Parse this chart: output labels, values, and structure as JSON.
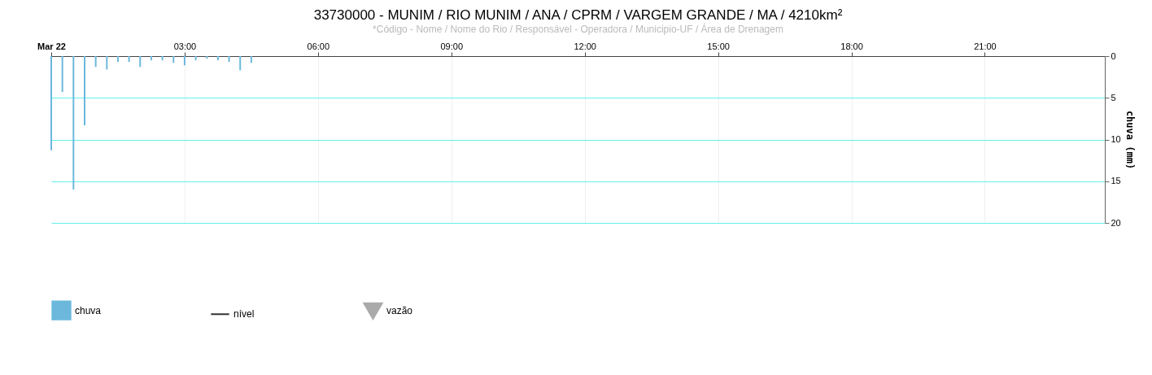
{
  "chart_data": {
    "type": "bar",
    "title": "33730000 - MUNIM / RIO MUNIM / ANA / CPRM / VARGEM GRANDE / MA / 4210km²",
    "subtitle": "*Código - Nome / Nome do Rio / Responsável - Operadora / Municipio-UF / Área de Drenagem",
    "ylabel": "chuva (mm)",
    "x": [
      0,
      0.25,
      0.5,
      0.75,
      1,
      1.25,
      1.5,
      1.75,
      2,
      2.25,
      2.5,
      2.75,
      3,
      3.25,
      3.5,
      3.75,
      4,
      4.25,
      4.5
    ],
    "series": [
      {
        "name": "chuva",
        "color": "#6bb8dc",
        "values": [
          11.3,
          4.3,
          16,
          8.3,
          1.3,
          1.6,
          0.7,
          0.7,
          1.3,
          0.5,
          0.5,
          0.8,
          1.1,
          0.5,
          0.3,
          0.5,
          0.7,
          1.7,
          0.8
        ]
      },
      {
        "name": "nível",
        "type": "line",
        "color": "#333333",
        "marker": "none",
        "values": [
          null,
          null,
          null,
          null,
          null,
          null,
          null,
          null,
          null,
          null,
          null,
          null,
          null,
          null,
          null,
          null,
          null,
          null,
          null
        ]
      },
      {
        "name": "vazão",
        "type": "line",
        "color": "#aaaaaa",
        "marker": "triangle",
        "values": [
          null,
          null,
          null,
          null,
          null,
          null,
          null,
          null,
          null,
          null,
          null,
          null,
          null,
          null,
          null,
          null,
          null,
          null,
          null
        ]
      }
    ],
    "xlim": [
      0,
      23.7
    ],
    "xticks": [
      {
        "value": 0,
        "label": "Mar 22"
      },
      {
        "value": 3,
        "label": "03:00"
      },
      {
        "value": 6,
        "label": "06:00"
      },
      {
        "value": 9,
        "label": "09:00"
      },
      {
        "value": 12,
        "label": "12:00"
      },
      {
        "value": 15,
        "label": "15:00"
      },
      {
        "value": 18,
        "label": "18:00"
      },
      {
        "value": 21,
        "label": "21:00"
      }
    ],
    "ylim": [
      20,
      0
    ],
    "yticks": [
      0,
      5,
      10,
      15,
      20
    ],
    "grid": true,
    "legend": "bottom left"
  }
}
